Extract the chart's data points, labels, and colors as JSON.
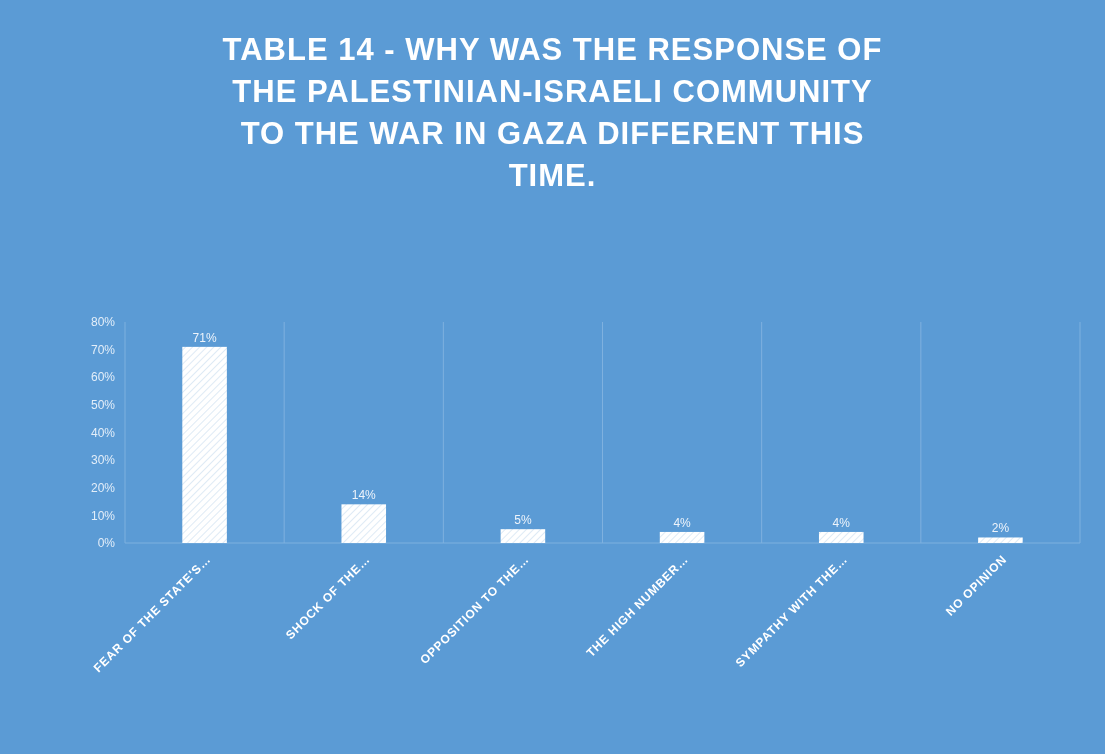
{
  "chart_data": {
    "type": "bar",
    "title": "TABLE 14 - WHY WAS THE RESPONSE OF THE PALESTINIAN-ISRAELI COMMUNITY TO THE WAR IN GAZA DIFFERENT THIS TIME.",
    "categories": [
      "FEAR OF THE STATE'S…",
      "SHOCK OF THE…",
      "OPPOSITION TO THE…",
      "THE HIGH NUMBER…",
      "SYMPATHY WITH THE…",
      "NO OPINION"
    ],
    "values": [
      71,
      14,
      5,
      4,
      4,
      2
    ],
    "value_labels": [
      "71%",
      "14%",
      "5%",
      "4%",
      "4%",
      "2%"
    ],
    "color": "#ffffff",
    "grid": "x",
    "ylim": [
      0,
      80
    ],
    "yticks": [
      {
        "value": 0,
        "label": "0%"
      },
      {
        "value": 10,
        "label": "10%"
      },
      {
        "value": 20,
        "label": "20%"
      },
      {
        "value": 30,
        "label": "30%"
      },
      {
        "value": 40,
        "label": "40%"
      },
      {
        "value": 50,
        "label": "50%"
      },
      {
        "value": 60,
        "label": "60%"
      },
      {
        "value": 70,
        "label": "70%"
      },
      {
        "value": 80,
        "label": "80%"
      }
    ]
  }
}
